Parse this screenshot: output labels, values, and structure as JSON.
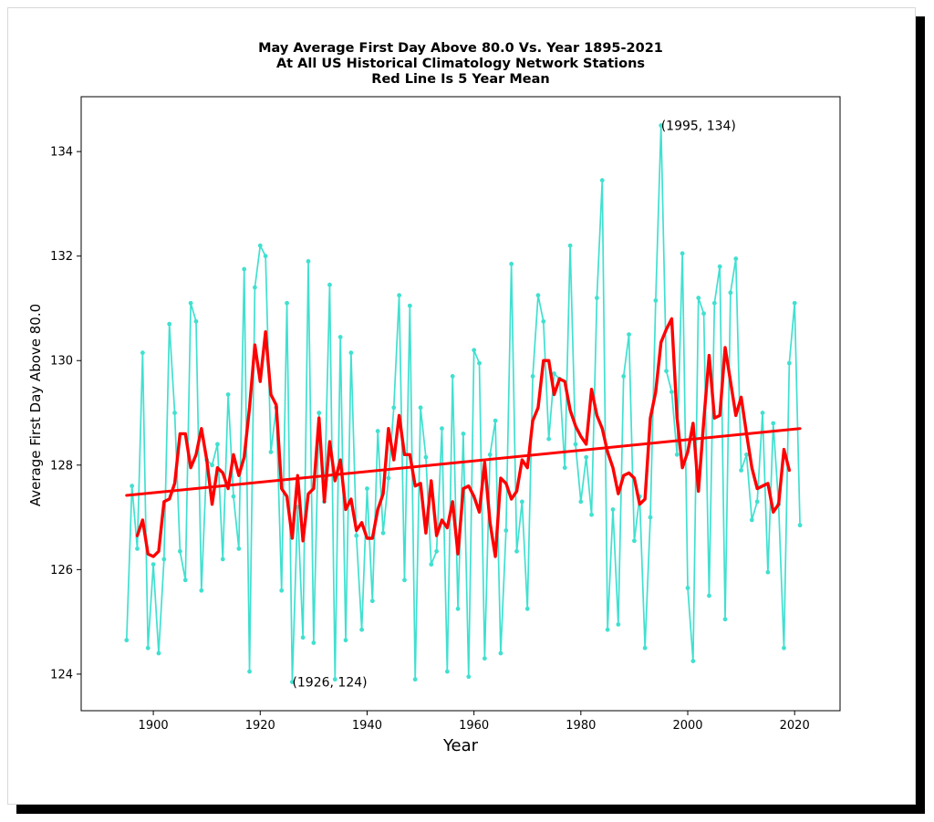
{
  "chart_data": {
    "type": "line",
    "title_lines": [
      "May Average First Day Above 80.0 Vs. Year 1895-2021",
      "At All US Historical Climatology Network Stations",
      "Red Line Is 5 Year Mean"
    ],
    "xlabel": "Year",
    "ylabel": "Average First Day Above 80.0",
    "xlim": [
      1886.5,
      2028.5
    ],
    "ylim": [
      123.3,
      135.05
    ],
    "xticks": [
      1900,
      1920,
      1940,
      1960,
      1980,
      2000,
      2020
    ],
    "yticks": [
      124,
      126,
      128,
      130,
      132,
      134
    ],
    "grid": false,
    "colors": {
      "annual": "#40e0d0",
      "mean": "#ff0000",
      "trend": "#ff0000"
    },
    "annotations": [
      {
        "text": "(1995, 134)",
        "x": 1995,
        "y": 134.5
      },
      {
        "text": "(1926, 124)",
        "x": 1926,
        "y": 123.85
      }
    ],
    "series": [
      {
        "role": "annual",
        "x": [
          1895,
          1896,
          1897,
          1898,
          1899,
          1900,
          1901,
          1902,
          1903,
          1904,
          1905,
          1906,
          1907,
          1908,
          1909,
          1910,
          1911,
          1912,
          1913,
          1914,
          1915,
          1916,
          1917,
          1918,
          1919,
          1920,
          1921,
          1922,
          1923,
          1924,
          1925,
          1926,
          1927,
          1928,
          1929,
          1930,
          1931,
          1932,
          1933,
          1934,
          1935,
          1936,
          1937,
          1938,
          1939,
          1940,
          1941,
          1942,
          1943,
          1944,
          1945,
          1946,
          1947,
          1948,
          1949,
          1950,
          1951,
          1952,
          1953,
          1954,
          1955,
          1956,
          1957,
          1958,
          1959,
          1960,
          1961,
          1962,
          1963,
          1964,
          1965,
          1966,
          1967,
          1968,
          1969,
          1970,
          1971,
          1972,
          1973,
          1974,
          1975,
          1976,
          1977,
          1978,
          1979,
          1980,
          1981,
          1982,
          1983,
          1984,
          1985,
          1986,
          1987,
          1988,
          1989,
          1990,
          1991,
          1992,
          1993,
          1994,
          1995,
          1996,
          1997,
          1998,
          1999,
          2000,
          2001,
          2002,
          2003,
          2004,
          2005,
          2006,
          2007,
          2008,
          2009,
          2010,
          2011,
          2012,
          2013,
          2014,
          2015,
          2016,
          2017,
          2018,
          2019,
          2020,
          2021
        ],
        "y": [
          124.65,
          127.6,
          126.4,
          130.15,
          124.5,
          126.1,
          124.4,
          126.2,
          130.7,
          129.0,
          126.35,
          125.8,
          131.1,
          130.75,
          125.6,
          128.1,
          128.0,
          128.4,
          126.2,
          129.35,
          127.4,
          126.4,
          131.75,
          124.05,
          131.4,
          132.2,
          132.0,
          128.25,
          129.1,
          125.6,
          131.1,
          123.85,
          127.2,
          124.7,
          131.9,
          124.6,
          129.0,
          127.3,
          131.45,
          123.9,
          130.45,
          124.65,
          130.15,
          126.65,
          124.85,
          127.55,
          125.4,
          128.65,
          126.7,
          127.75,
          129.1,
          131.25,
          125.8,
          131.05,
          123.9,
          129.1,
          128.15,
          126.1,
          126.35,
          128.7,
          124.05,
          129.7,
          125.25,
          128.6,
          123.95,
          130.2,
          129.95,
          124.3,
          128.2,
          128.85,
          124.4,
          126.75,
          131.85,
          126.35,
          127.3,
          125.25,
          129.7,
          131.25,
          130.75,
          128.5,
          129.75,
          129.65,
          127.95,
          132.2,
          128.4,
          127.3,
          128.15,
          127.05,
          131.2,
          133.45,
          124.85,
          127.15,
          124.95,
          129.7,
          130.5,
          126.55,
          127.4,
          124.5,
          127.0,
          131.15,
          134.5,
          129.8,
          129.4,
          128.2,
          132.05,
          125.65,
          124.25,
          131.2,
          130.9,
          125.5,
          131.1,
          131.8,
          125.05,
          131.3,
          131.95,
          127.9,
          128.2,
          126.95,
          127.3,
          129.0,
          125.95,
          128.8,
          127.25,
          124.5,
          129.95,
          131.1,
          126.85
        ]
      },
      {
        "role": "5-year mean",
        "x": [
          1897,
          1898,
          1899,
          1900,
          1901,
          1902,
          1903,
          1904,
          1905,
          1906,
          1907,
          1908,
          1909,
          1910,
          1911,
          1912,
          1913,
          1914,
          1915,
          1916,
          1917,
          1918,
          1919,
          1920,
          1921,
          1922,
          1923,
          1924,
          1925,
          1926,
          1927,
          1928,
          1929,
          1930,
          1931,
          1932,
          1933,
          1934,
          1935,
          1936,
          1937,
          1938,
          1939,
          1940,
          1941,
          1942,
          1943,
          1944,
          1945,
          1946,
          1947,
          1948,
          1949,
          1950,
          1951,
          1952,
          1953,
          1954,
          1955,
          1956,
          1957,
          1958,
          1959,
          1960,
          1961,
          1962,
          1963,
          1964,
          1965,
          1966,
          1967,
          1968,
          1969,
          1970,
          1971,
          1972,
          1973,
          1974,
          1975,
          1976,
          1977,
          1978,
          1979,
          1980,
          1981,
          1982,
          1983,
          1984,
          1985,
          1986,
          1987,
          1988,
          1989,
          1990,
          1991,
          1992,
          1993,
          1994,
          1995,
          1996,
          1997,
          1998,
          1999,
          2000,
          2001,
          2002,
          2003,
          2004,
          2005,
          2006,
          2007,
          2008,
          2009,
          2010,
          2011,
          2012,
          2013,
          2014,
          2015,
          2016,
          2017,
          2018,
          2019
        ],
        "y": [
          126.65,
          126.95,
          126.3,
          126.25,
          126.35,
          127.3,
          127.35,
          127.65,
          128.6,
          128.6,
          127.95,
          128.2,
          128.7,
          128.1,
          127.25,
          127.95,
          127.85,
          127.55,
          128.2,
          127.8,
          128.15,
          129.1,
          130.3,
          129.6,
          130.55,
          129.35,
          129.15,
          127.55,
          127.4,
          126.6,
          127.8,
          126.55,
          127.45,
          127.55,
          128.9,
          127.3,
          128.45,
          127.7,
          128.1,
          127.15,
          127.35,
          126.75,
          126.9,
          126.6,
          126.6,
          127.15,
          127.45,
          128.7,
          128.1,
          128.95,
          128.2,
          128.2,
          127.6,
          127.65,
          126.7,
          127.7,
          126.65,
          126.95,
          126.8,
          127.3,
          126.3,
          127.55,
          127.6,
          127.4,
          127.1,
          128.05,
          126.9,
          126.25,
          127.75,
          127.65,
          127.35,
          127.5,
          128.1,
          127.95,
          128.85,
          129.1,
          130.0,
          130.0,
          129.35,
          129.65,
          129.6,
          129.05,
          128.75,
          128.55,
          128.4,
          129.45,
          128.95,
          128.7,
          128.25,
          127.95,
          127.45,
          127.8,
          127.85,
          127.75,
          127.25,
          127.35,
          128.9,
          129.4,
          130.35,
          130.6,
          130.8,
          128.9,
          127.95,
          128.25,
          128.8,
          127.5,
          128.85,
          130.1,
          128.9,
          128.95,
          130.25,
          129.6,
          128.95,
          129.3,
          128.6,
          127.95,
          127.55,
          127.6,
          127.65,
          127.1,
          127.25,
          128.3,
          127.9
        ]
      },
      {
        "role": "trend",
        "x": [
          1895,
          2021
        ],
        "y": [
          127.42,
          128.7
        ]
      }
    ]
  }
}
